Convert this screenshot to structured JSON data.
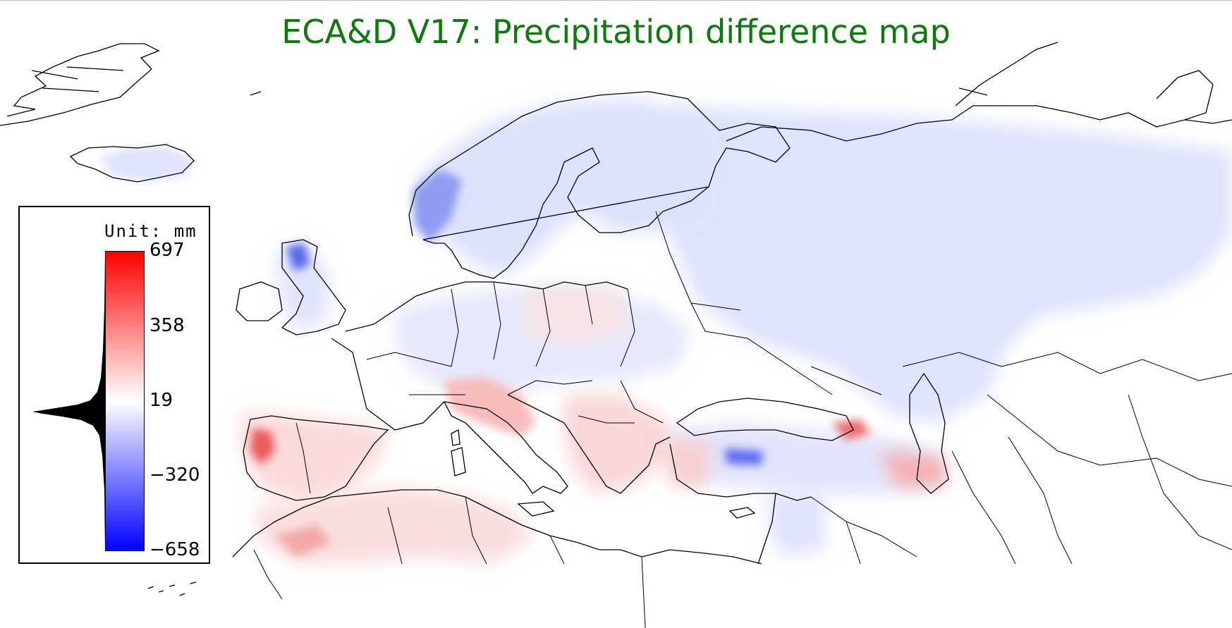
{
  "title": "ECA&D V17: Precipitation difference map",
  "legend": {
    "unit": "Unit: mm",
    "ticks": [
      "697",
      "358",
      "19",
      "−320",
      "−658"
    ],
    "colors": {
      "max": "#ff0000",
      "mid": "#ffffff",
      "min": "#0000ff"
    }
  },
  "colors": {
    "title": "#0a7c0a",
    "coast": "#000000"
  }
}
